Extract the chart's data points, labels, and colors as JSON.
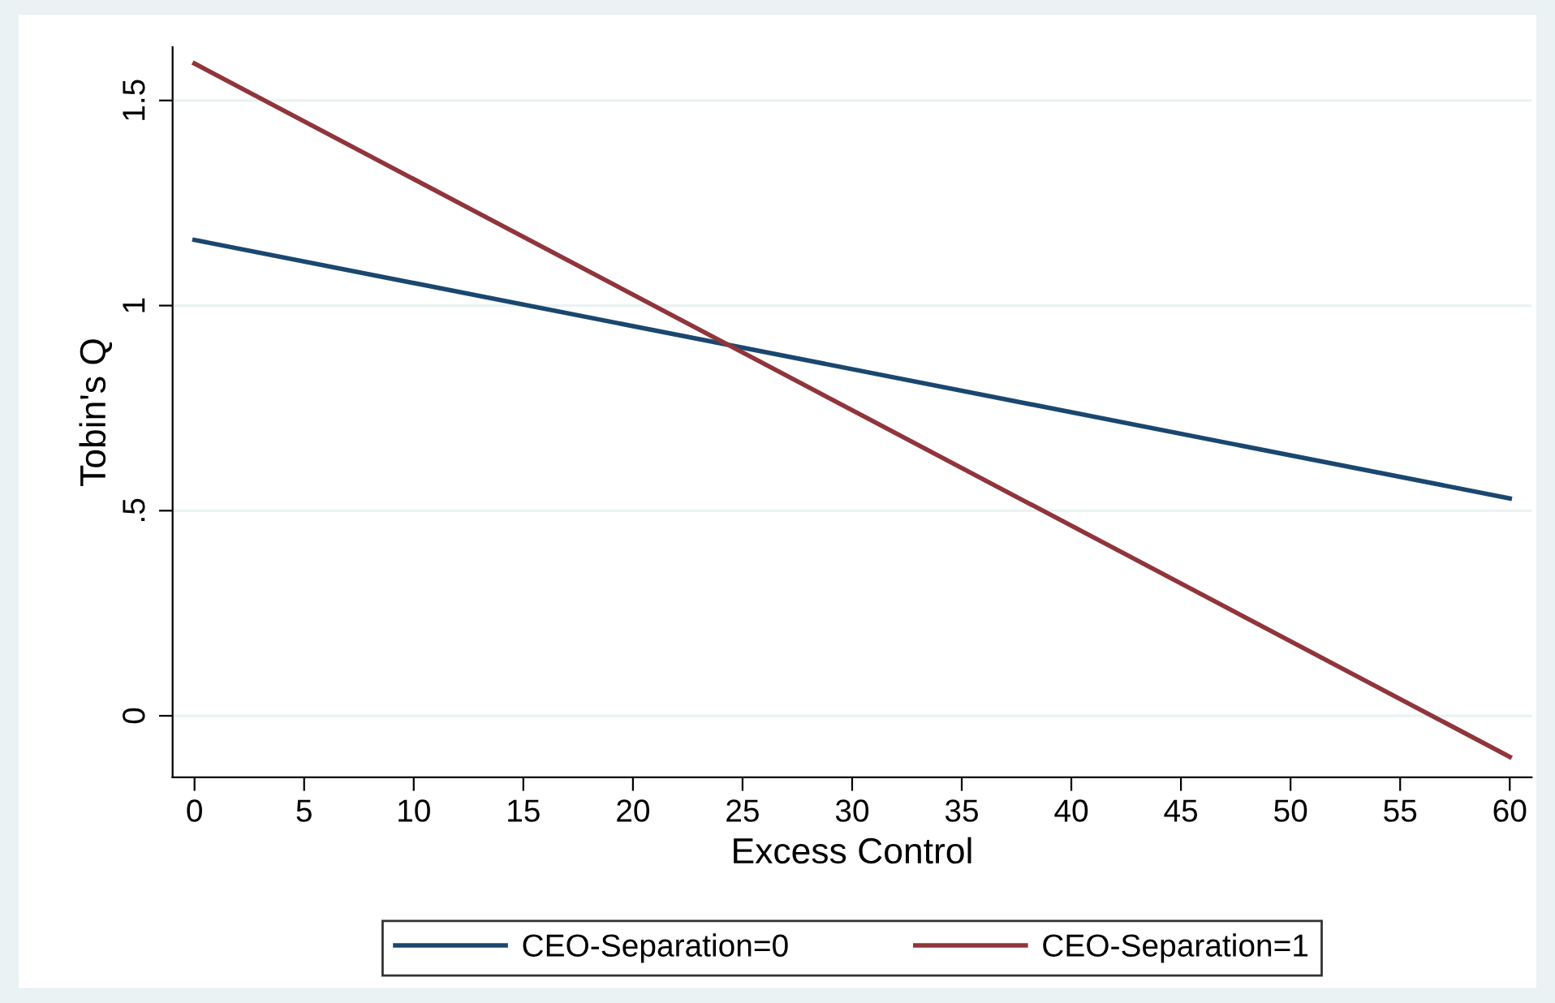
{
  "chart_data": {
    "type": "line",
    "xlabel": "Excess Control",
    "ylabel": "Tobin's Q",
    "x": [
      0,
      60
    ],
    "series": [
      {
        "name": "CEO-Separation=0",
        "color": "#1a476f",
        "values": [
          1.16,
          0.53
        ]
      },
      {
        "name": "CEO-Separation=1",
        "color": "#90353b",
        "values": [
          1.59,
          -0.1
        ]
      }
    ],
    "xlim": [
      -1,
      61
    ],
    "xticks": [
      0,
      5,
      10,
      15,
      20,
      25,
      30,
      35,
      40,
      45,
      50,
      55,
      60
    ],
    "ylim": [
      -0.15,
      1.63
    ],
    "yticks": [
      {
        "value": 0,
        "label": "0"
      },
      {
        "value": 0.5,
        "label": ".5"
      },
      {
        "value": 1,
        "label": "1"
      },
      {
        "value": 1.5,
        "label": "1.5"
      }
    ],
    "grid": "y",
    "legend": "bottom",
    "marker": "none",
    "line_style": "solid"
  }
}
